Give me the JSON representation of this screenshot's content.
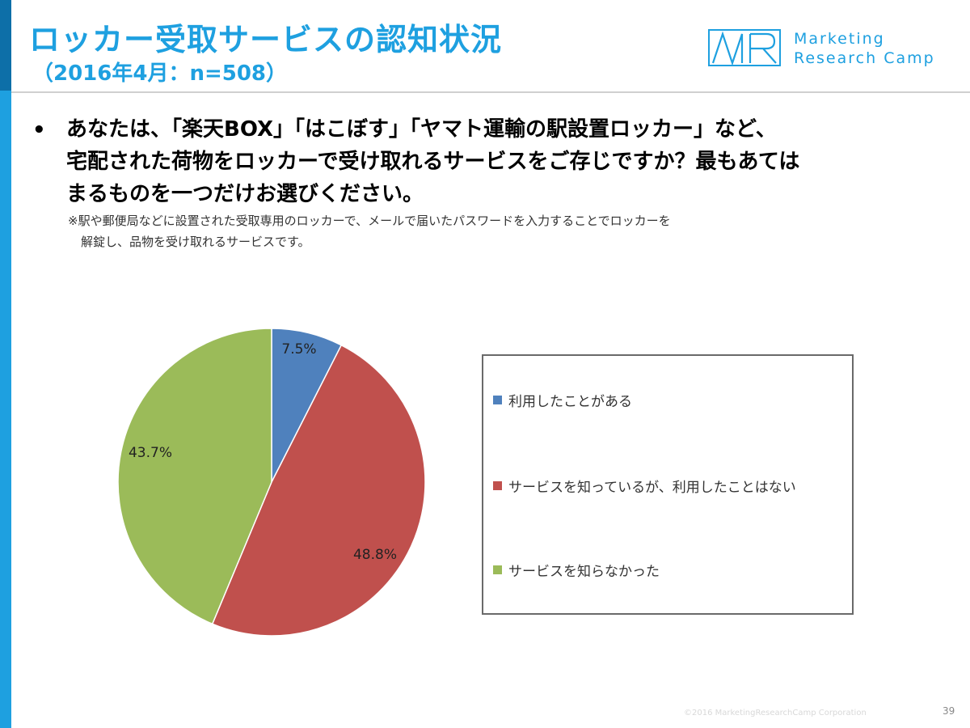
{
  "header": {
    "title": "ロッカー受取サービスの認知状況",
    "subtitle": "（2016年4月：n=508）",
    "logo_line1": "Marketing",
    "logo_line2": "Research Camp",
    "logo_mark": "MR"
  },
  "question": {
    "bullet": "•",
    "lines": [
      "あなたは、「楽天BOX」「はこぼす」「ヤマト運輸の駅設置ロッカー」など、",
      "宅配された荷物をロッカーで受け取れるサービスをご存じですか？最もあては",
      "まるものを一つだけお選びください。"
    ],
    "note_lines": [
      "※駅や郵便局などに設置された受取専用のロッカーで、メールで届いたパスワードを入力することでロッカーを",
      "解錠し、品物を受け取れるサービスです。"
    ]
  },
  "chart_data": {
    "type": "pie",
    "unit": "%",
    "slices": [
      {
        "label": "利用したことがある",
        "value": 7.5,
        "display": "7.5%",
        "color": "#4f81bd"
      },
      {
        "label": "サービスを知っているが、利用したことはない",
        "value": 48.8,
        "display": "48.8%",
        "color": "#c0504d"
      },
      {
        "label": "サービスを知らなかった",
        "value": 43.7,
        "display": "43.7%",
        "color": "#9bbb59"
      }
    ],
    "legend_position": "right",
    "start_angle": "12 o'clock",
    "direction": "clockwise"
  },
  "footer": {
    "copyright": "©2016 MarketingResearchCamp Corporation",
    "page_number": "39"
  }
}
